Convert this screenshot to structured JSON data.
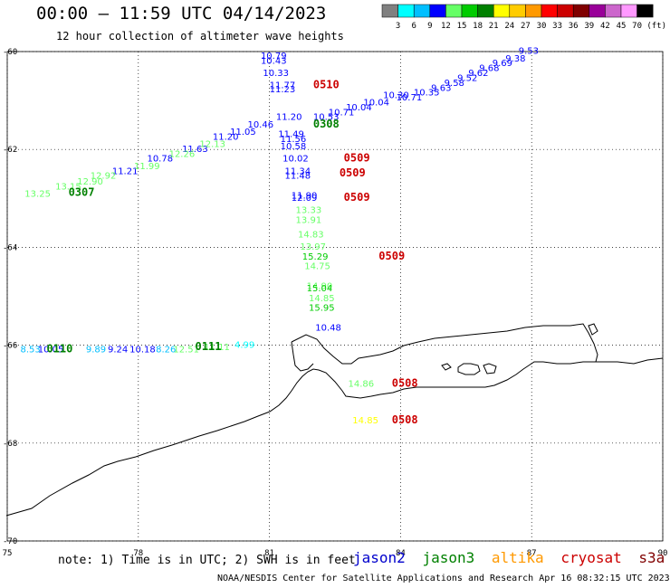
{
  "title": "00:00 – 11:59 UTC 04/14/2023",
  "subtitle": "12 hour collection of altimeter wave heights",
  "colorbar": {
    "colors": [
      "#808080",
      "#00ffff",
      "#00bfff",
      "#0000ff",
      "#66ff66",
      "#00cc00",
      "#008000",
      "#ffff00",
      "#ffcc00",
      "#ff9900",
      "#ff0000",
      "#cc0000",
      "#800000",
      "#990099",
      "#cc66cc",
      "#ff99ff",
      "#000000"
    ],
    "labels": [
      "3",
      "6",
      "9",
      "12",
      "15",
      "18",
      "21",
      "24",
      "27",
      "30",
      "33",
      "36",
      "39",
      "42",
      "45",
      "70",
      "(ft)"
    ]
  },
  "map": {
    "lon_range": [
      75,
      90
    ],
    "lat_range": [
      -70,
      -60
    ],
    "lon_ticks": [
      "75",
      "78",
      "81",
      "84",
      "87",
      "90"
    ],
    "lat_ticks": [
      "-60",
      "-62",
      "-64",
      "-66",
      "-68",
      "-70"
    ],
    "grid": true
  },
  "satellite_colors": {
    "jason2": "#0000cc",
    "jason3": "#008000",
    "altika": "#ff9900",
    "cryosat": "#cc0000",
    "s3a": "#800000"
  },
  "time_labels": [
    {
      "text": "0510",
      "sat": "cryosat",
      "lon": 82.0,
      "lat": -60.75
    },
    {
      "text": "0308",
      "sat": "jason3",
      "lon": 82.0,
      "lat": -61.55
    },
    {
      "text": "0509",
      "sat": "cryosat",
      "lon": 82.7,
      "lat": -62.25
    },
    {
      "text": "0509",
      "sat": "cryosat",
      "lon": 82.6,
      "lat": -62.55
    },
    {
      "text": "0509",
      "sat": "cryosat",
      "lon": 82.7,
      "lat": -63.05
    },
    {
      "text": "0509",
      "sat": "cryosat",
      "lon": 83.5,
      "lat": -64.25
    },
    {
      "text": "0307",
      "sat": "jason3",
      "lon": 76.4,
      "lat": -62.95
    },
    {
      "text": "0110",
      "sat": "jason3",
      "lon": 75.9,
      "lat": -66.15
    },
    {
      "text": "0111",
      "sat": "jason3",
      "lon": 79.3,
      "lat": -66.1
    },
    {
      "text": "0508",
      "sat": "cryosat",
      "lon": 83.8,
      "lat": -66.85
    },
    {
      "text": "0508",
      "sat": "cryosat",
      "lon": 83.8,
      "lat": -67.6
    }
  ],
  "swh_points": [
    {
      "v": "9.53",
      "c": "#0000ff",
      "lon": 86.7,
      "lat": -60.05
    },
    {
      "v": "9.38",
      "c": "#0000ff",
      "lon": 86.4,
      "lat": -60.2
    },
    {
      "v": "9.69",
      "c": "#0000ff",
      "lon": 86.1,
      "lat": -60.3
    },
    {
      "v": "9.68",
      "c": "#0000ff",
      "lon": 85.8,
      "lat": -60.4
    },
    {
      "v": "9.62",
      "c": "#0000ff",
      "lon": 85.55,
      "lat": -60.5
    },
    {
      "v": "9.52",
      "c": "#0000ff",
      "lon": 85.3,
      "lat": -60.6
    },
    {
      "v": "9.58",
      "c": "#0000ff",
      "lon": 85.0,
      "lat": -60.7
    },
    {
      "v": "9.63",
      "c": "#0000ff",
      "lon": 84.7,
      "lat": -60.8
    },
    {
      "v": "10.35",
      "c": "#0000ff",
      "lon": 84.3,
      "lat": -60.9
    },
    {
      "v": "10.71",
      "c": "#0000ff",
      "lon": 83.9,
      "lat": -61.0
    },
    {
      "v": "10.30",
      "c": "#0000ff",
      "lon": 83.6,
      "lat": -60.95
    },
    {
      "v": "10.04",
      "c": "#0000ff",
      "lon": 83.15,
      "lat": -61.1
    },
    {
      "v": "10.04",
      "c": "#0000ff",
      "lon": 82.75,
      "lat": -61.2
    },
    {
      "v": "10.71",
      "c": "#0000ff",
      "lon": 82.35,
      "lat": -61.3
    },
    {
      "v": "10.53",
      "c": "#0000ff",
      "lon": 82.0,
      "lat": -61.4
    },
    {
      "v": "10.46",
      "c": "#0000ff",
      "lon": 80.5,
      "lat": -61.55
    },
    {
      "v": "11.05",
      "c": "#0000ff",
      "lon": 80.1,
      "lat": -61.7
    },
    {
      "v": "11.20",
      "c": "#0000ff",
      "lon": 79.7,
      "lat": -61.8
    },
    {
      "v": "11.63",
      "c": "#0000ff",
      "lon": 79.0,
      "lat": -62.05
    },
    {
      "v": "10.78",
      "c": "#0000ff",
      "lon": 78.2,
      "lat": -62.25
    },
    {
      "v": "11.21",
      "c": "#0000ff",
      "lon": 77.4,
      "lat": -62.5
    },
    {
      "v": "12.13",
      "c": "#66ff66",
      "lon": 79.4,
      "lat": -61.95
    },
    {
      "v": "12.26",
      "c": "#66ff66",
      "lon": 78.7,
      "lat": -62.15
    },
    {
      "v": "11.99",
      "c": "#66ff66",
      "lon": 77.9,
      "lat": -62.4
    },
    {
      "v": "12.92",
      "c": "#66ff66",
      "lon": 76.9,
      "lat": -62.6
    },
    {
      "v": "12.90",
      "c": "#66ff66",
      "lon": 76.6,
      "lat": -62.72
    },
    {
      "v": "13.15",
      "c": "#66ff66",
      "lon": 76.1,
      "lat": -62.82
    },
    {
      "v": "13.25",
      "c": "#66ff66",
      "lon": 75.4,
      "lat": -62.97
    },
    {
      "v": "10.79",
      "c": "#0000ff",
      "lon": 80.8,
      "lat": -60.15
    },
    {
      "v": "10.43",
      "c": "#0000ff",
      "lon": 80.8,
      "lat": -60.25
    },
    {
      "v": "10.33",
      "c": "#0000ff",
      "lon": 80.85,
      "lat": -60.5
    },
    {
      "v": "11.77",
      "c": "#0000ff",
      "lon": 81.0,
      "lat": -60.75
    },
    {
      "v": "11.23",
      "c": "#0000ff",
      "lon": 81.0,
      "lat": -60.83
    },
    {
      "v": "11.20",
      "c": "#0000ff",
      "lon": 81.15,
      "lat": -61.4
    },
    {
      "v": "11.49",
      "c": "#0000ff",
      "lon": 81.2,
      "lat": -61.75
    },
    {
      "v": "11.56",
      "c": "#0000ff",
      "lon": 81.25,
      "lat": -61.85
    },
    {
      "v": "10.58",
      "c": "#0000ff",
      "lon": 81.25,
      "lat": -62.0
    },
    {
      "v": "10.02",
      "c": "#0000ff",
      "lon": 81.3,
      "lat": -62.25
    },
    {
      "v": "11.34",
      "c": "#0000ff",
      "lon": 81.35,
      "lat": -62.5
    },
    {
      "v": "11.48",
      "c": "#0000ff",
      "lon": 81.35,
      "lat": -62.6
    },
    {
      "v": "11.90",
      "c": "#0000ff",
      "lon": 81.5,
      "lat": -63.0
    },
    {
      "v": "12.09",
      "c": "#0000ff",
      "lon": 81.5,
      "lat": -63.05
    },
    {
      "v": "13.33",
      "c": "#66ff66",
      "lon": 81.6,
      "lat": -63.3
    },
    {
      "v": "13.91",
      "c": "#66ff66",
      "lon": 81.6,
      "lat": -63.5
    },
    {
      "v": "14.83",
      "c": "#66ff66",
      "lon": 81.65,
      "lat": -63.8
    },
    {
      "v": "13.97",
      "c": "#66ff66",
      "lon": 81.7,
      "lat": -64.05
    },
    {
      "v": "15.29",
      "c": "#00cc00",
      "lon": 81.75,
      "lat": -64.25
    },
    {
      "v": "14.75",
      "c": "#66ff66",
      "lon": 81.8,
      "lat": -64.45
    },
    {
      "v": "14.90",
      "c": "#66ff66",
      "lon": 81.85,
      "lat": -64.85
    },
    {
      "v": "15.04",
      "c": "#00cc00",
      "lon": 81.85,
      "lat": -64.9
    },
    {
      "v": "14.85",
      "c": "#66ff66",
      "lon": 81.9,
      "lat": -65.1
    },
    {
      "v": "15.95",
      "c": "#00cc00",
      "lon": 81.9,
      "lat": -65.3
    },
    {
      "v": "10.48",
      "c": "#0000ff",
      "lon": 82.05,
      "lat": -65.7
    },
    {
      "v": "8.53",
      "c": "#00bfff",
      "lon": 75.3,
      "lat": -66.15
    },
    {
      "v": "10.05",
      "c": "#0000ff",
      "lon": 75.7,
      "lat": -66.15
    },
    {
      "v": "9.89",
      "c": "#00bfff",
      "lon": 76.8,
      "lat": -66.15
    },
    {
      "v": "9.24",
      "c": "#0000ff",
      "lon": 77.3,
      "lat": -66.15
    },
    {
      "v": "10.18",
      "c": "#0000ff",
      "lon": 77.8,
      "lat": -66.15
    },
    {
      "v": "8.26",
      "c": "#00bfff",
      "lon": 78.4,
      "lat": -66.15
    },
    {
      "v": "12.51",
      "c": "#66ff66",
      "lon": 78.8,
      "lat": -66.15
    },
    {
      "v": "11.11",
      "c": "#66ff66",
      "lon": 79.5,
      "lat": -66.1
    },
    {
      "v": "4.99",
      "c": "#00ffff",
      "lon": 80.2,
      "lat": -66.05
    },
    {
      "v": "14.86",
      "c": "#66ff66",
      "lon": 82.8,
      "lat": -66.85
    },
    {
      "v": "14.85",
      "c": "#ffff00",
      "lon": 82.9,
      "lat": -67.6
    }
  ],
  "note": "note: 1) Time is in UTC; 2) SWH is in feet",
  "legend": {
    "jason2": "jason2",
    "jason3": "jason3",
    "altika": "altika",
    "cryosat": "cryosat",
    "s3a": "s3a"
  },
  "footer": "NOAA/NESDIS Center for Satellite Applications and Research   Apr 16 08:32:15 UTC 2023"
}
